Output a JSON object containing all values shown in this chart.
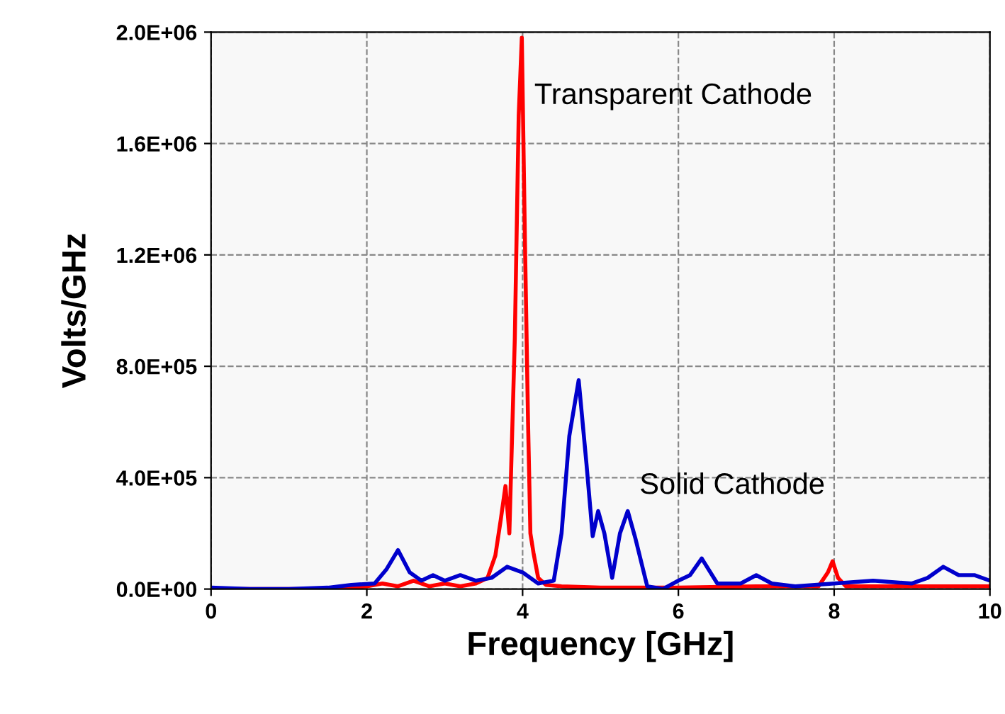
{
  "chart_data": {
    "type": "line",
    "xlabel": "Frequency [GHz]",
    "ylabel": "Volts/GHz",
    "xlim": [
      0,
      10
    ],
    "xticks": [
      0,
      2,
      4,
      6,
      8,
      10
    ],
    "ylim": [
      0,
      2000000
    ],
    "yticks": [
      {
        "value": 0,
        "label": "0.0E+00"
      },
      {
        "value": 400000,
        "label": "4.0E+05"
      },
      {
        "value": 800000,
        "label": "8.0E+05"
      },
      {
        "value": 1200000,
        "label": "1.2E+06"
      },
      {
        "value": 1600000,
        "label": "1.6E+06"
      },
      {
        "value": 2000000,
        "label": "2.0E+06"
      }
    ],
    "grid": true,
    "marker": "none",
    "line_style": "solid",
    "series": [
      {
        "color": "#ff0000",
        "x": [
          0,
          1.5,
          2.0,
          2.2,
          2.4,
          2.6,
          2.8,
          3.0,
          3.2,
          3.4,
          3.55,
          3.65,
          3.72,
          3.78,
          3.83,
          3.9,
          3.95,
          3.99,
          4.03,
          4.07,
          4.1,
          4.14,
          4.2,
          4.3,
          4.5,
          5.0,
          6.0,
          7.0,
          7.8,
          7.92,
          7.98,
          8.05,
          8.15,
          9.0,
          10
        ],
        "values": [
          0,
          0,
          10000,
          20000,
          10000,
          30000,
          10000,
          20000,
          10000,
          20000,
          40000,
          120000,
          250000,
          370000,
          200000,
          900000,
          1700000,
          1980000,
          1250000,
          600000,
          200000,
          130000,
          40000,
          15000,
          10000,
          5000,
          5000,
          10000,
          10000,
          60000,
          100000,
          40000,
          10000,
          10000,
          10000
        ]
      },
      {
        "color": "#0000cc",
        "x": [
          0,
          0.5,
          1.0,
          1.5,
          1.8,
          2.1,
          2.25,
          2.4,
          2.55,
          2.7,
          2.85,
          3.0,
          3.2,
          3.4,
          3.6,
          3.8,
          4.0,
          4.2,
          4.4,
          4.5,
          4.6,
          4.72,
          4.82,
          4.9,
          4.97,
          5.05,
          5.15,
          5.25,
          5.35,
          5.45,
          5.6,
          5.8,
          6.0,
          6.15,
          6.3,
          6.5,
          6.8,
          7.0,
          7.2,
          7.5,
          8.0,
          8.5,
          9.0,
          9.2,
          9.4,
          9.6,
          9.8,
          10
        ],
        "values": [
          5000,
          0,
          0,
          5000,
          15000,
          20000,
          70000,
          140000,
          60000,
          30000,
          50000,
          30000,
          50000,
          30000,
          40000,
          80000,
          60000,
          20000,
          30000,
          200000,
          550000,
          750000,
          450000,
          190000,
          280000,
          200000,
          40000,
          200000,
          280000,
          180000,
          10000,
          0,
          30000,
          50000,
          110000,
          20000,
          20000,
          50000,
          20000,
          10000,
          20000,
          30000,
          20000,
          40000,
          80000,
          50000,
          50000,
          30000
        ]
      }
    ],
    "annotations": [
      "Transparent Cathode",
      "Solid Cathode"
    ]
  }
}
